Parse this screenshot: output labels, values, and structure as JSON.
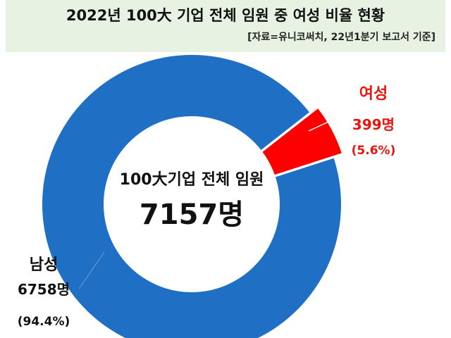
{
  "header": {
    "title": "2022년 100大 기업 전체 임원 중 여성 비율 현황",
    "source": "[자료=유니코써치, 22년1분기 보고서 기준]"
  },
  "chart_data": {
    "type": "pie",
    "center_label": "100大기업 전체 임원",
    "center_total": "7157명",
    "total": 7157,
    "slices": [
      {
        "name": "남성",
        "value": 6758,
        "value_label": "6758명",
        "percent_label": "(94.4%)",
        "color": "#1f6fc5",
        "label_color": "#111111"
      },
      {
        "name": "여성",
        "value": 399,
        "value_label": "399명",
        "percent_label": "(5.6%)",
        "color": "#ff0000",
        "label_color": "#e8150d"
      }
    ]
  }
}
